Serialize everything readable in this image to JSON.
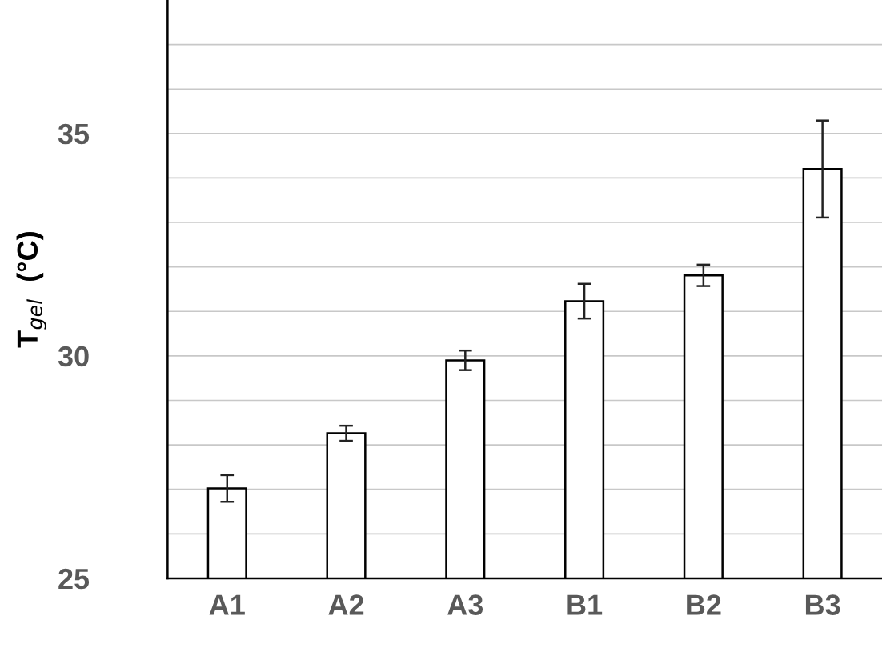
{
  "chart_data": {
    "type": "bar",
    "ylabel": "T$_{gel}$  (°C)",
    "categories": [
      "A1",
      "A2",
      "A3",
      "B1",
      "B2",
      "B3"
    ],
    "values": [
      27.02,
      28.26,
      29.9,
      31.23,
      31.81,
      34.2
    ],
    "errors": [
      0.3,
      0.17,
      0.22,
      0.39,
      0.24,
      1.09
    ],
    "color": "#ffffff",
    "ylim": [
      25,
      38
    ],
    "yticks": [
      25,
      {
        "value": 26,
        "label": null
      },
      {
        "value": 27,
        "label": null
      },
      {
        "value": 28,
        "label": null
      },
      {
        "value": 29,
        "label": null
      },
      30,
      {
        "value": 31,
        "label": null
      },
      {
        "value": 32,
        "label": null
      },
      {
        "value": 33,
        "label": null
      },
      {
        "value": 34,
        "label": null
      },
      35,
      {
        "value": 36,
        "label": null
      },
      {
        "value": 37,
        "label": null
      }
    ],
    "grid": "y"
  }
}
